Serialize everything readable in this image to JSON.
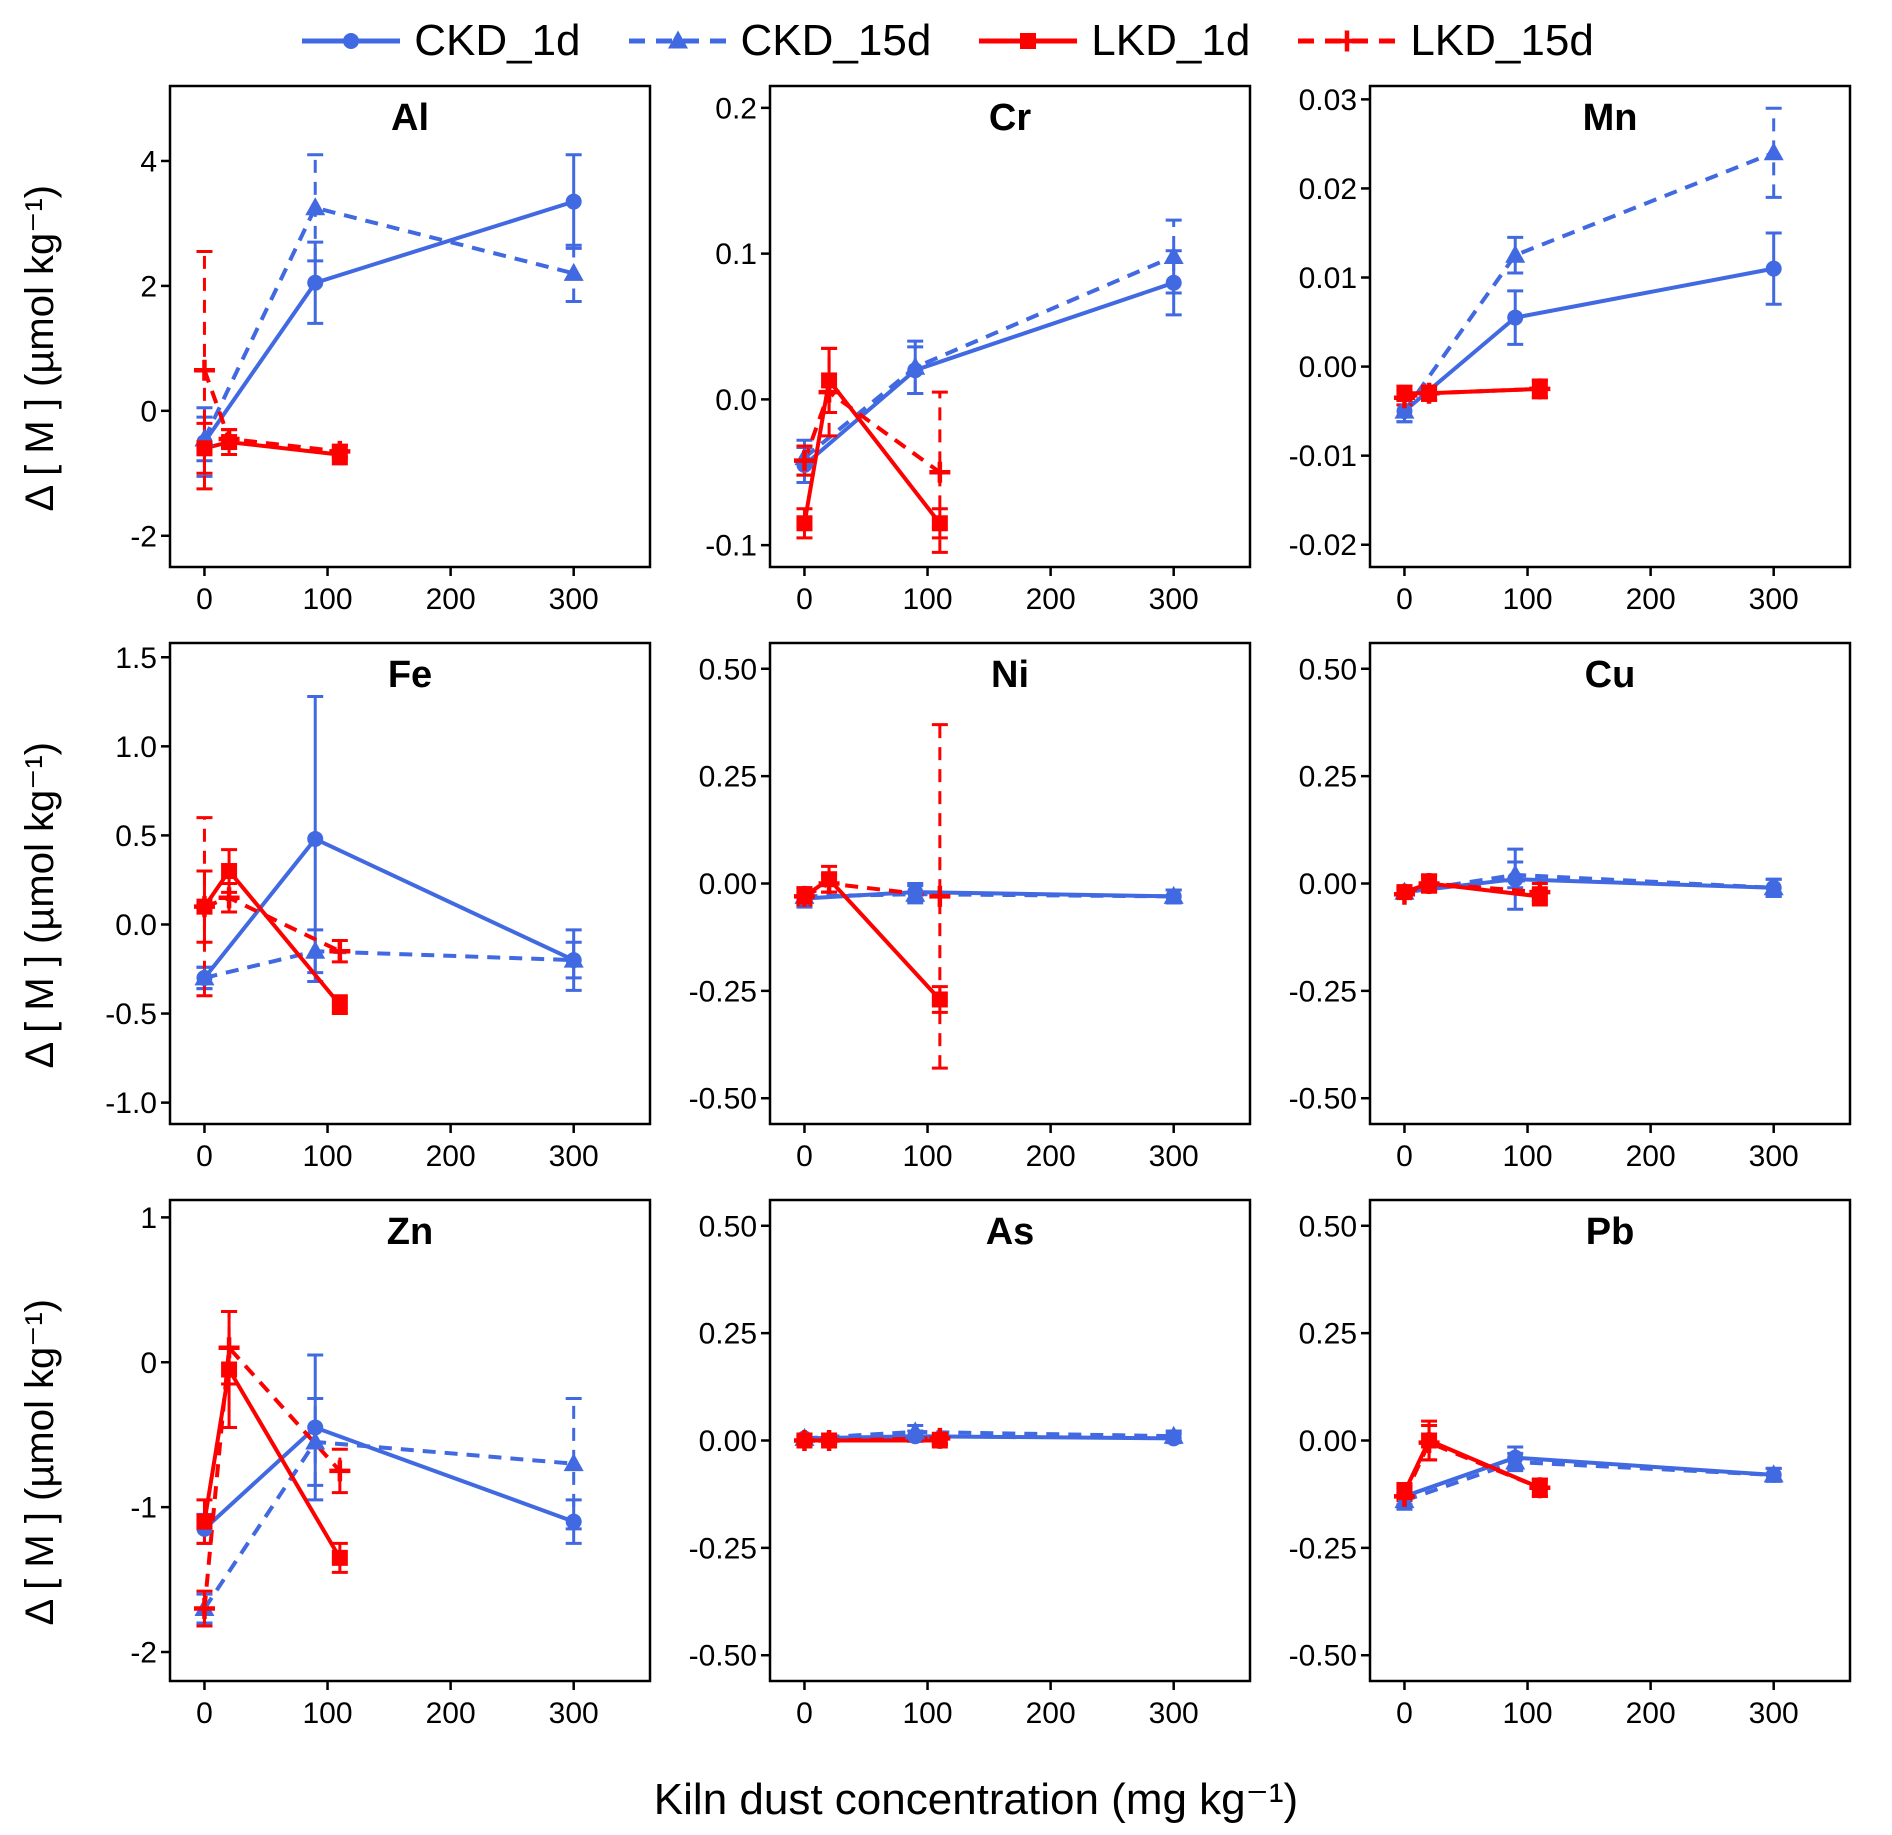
{
  "figure": {
    "x_axis_label": "Kiln dust concentration (mg kg⁻¹)",
    "y_axis_label": "Δ [ M ] (µmol kg⁻¹)"
  },
  "colors": {
    "blue": "#4169E1",
    "red": "#FF0000",
    "axis": "#000000",
    "panel_bg": "#FFFFFF"
  },
  "legend": {
    "items": [
      {
        "name": "CKD_1d",
        "label": "CKD_1d",
        "color": "#4169E1",
        "dashed": false,
        "marker": "circle"
      },
      {
        "name": "CKD_15d",
        "label": "CKD_15d",
        "color": "#4169E1",
        "dashed": true,
        "marker": "triangle"
      },
      {
        "name": "LKD_1d",
        "label": "LKD_1d",
        "color": "#FF0000",
        "dashed": false,
        "marker": "square"
      },
      {
        "name": "LKD_15d",
        "label": "LKD_15d",
        "color": "#FF0000",
        "dashed": true,
        "marker": "plus"
      }
    ]
  },
  "chart_data": [
    {
      "type": "line",
      "title": "Al",
      "xlim": [
        -28,
        362
      ],
      "xticks": [
        0,
        100,
        200,
        300
      ],
      "xtick_labels": [
        "0",
        "100",
        "200",
        "300"
      ],
      "ylim": [
        -2.5,
        5.2
      ],
      "yticks": [
        -2,
        0,
        2,
        4
      ],
      "ytick_labels": [
        "-2",
        "0",
        "2",
        "4"
      ],
      "series": [
        {
          "name": "CKD_1d",
          "x": [
            0,
            90,
            300
          ],
          "y": [
            -0.5,
            2.05,
            3.35
          ],
          "err": [
            0.55,
            0.65,
            0.75
          ]
        },
        {
          "name": "CKD_15d",
          "x": [
            0,
            90,
            300
          ],
          "y": [
            -0.45,
            3.25,
            2.2
          ],
          "err": [
            0.35,
            0.85,
            0.45
          ]
        },
        {
          "name": "LKD_1d",
          "x": [
            0,
            20,
            110
          ],
          "y": [
            -0.6,
            -0.5,
            -0.7
          ],
          "err": [
            0.4,
            0.2,
            0.15
          ]
        },
        {
          "name": "LKD_15d",
          "x": [
            0,
            20,
            110
          ],
          "y": [
            0.65,
            -0.45,
            -0.65
          ],
          "err": [
            1.9,
            0.15,
            0.1
          ]
        }
      ]
    },
    {
      "type": "line",
      "title": "Cr",
      "xlim": [
        -28,
        362
      ],
      "xticks": [
        0,
        100,
        200,
        300
      ],
      "xtick_labels": [
        "0",
        "100",
        "200",
        "300"
      ],
      "ylim": [
        -0.115,
        0.215
      ],
      "yticks": [
        -0.1,
        0.0,
        0.1,
        0.2
      ],
      "ytick_labels": [
        "-0.1",
        "0.0",
        "0.1",
        "0.2"
      ],
      "series": [
        {
          "name": "CKD_1d",
          "x": [
            0,
            90,
            300
          ],
          "y": [
            -0.045,
            0.02,
            0.08
          ],
          "err": [
            0.012,
            0.016,
            0.022
          ]
        },
        {
          "name": "CKD_15d",
          "x": [
            0,
            90,
            300
          ],
          "y": [
            -0.04,
            0.022,
            0.098
          ],
          "err": [
            0.012,
            0.018,
            0.025
          ]
        },
        {
          "name": "LKD_1d",
          "x": [
            0,
            20,
            110
          ],
          "y": [
            -0.085,
            0.013,
            -0.085
          ],
          "err": [
            0.01,
            0.022,
            0.01
          ]
        },
        {
          "name": "LKD_15d",
          "x": [
            0,
            20,
            110
          ],
          "y": [
            -0.042,
            0.005,
            -0.05
          ],
          "err": [
            0.01,
            0.03,
            0.055
          ]
        }
      ]
    },
    {
      "type": "line",
      "title": "Mn",
      "xlim": [
        -28,
        362
      ],
      "xticks": [
        0,
        100,
        200,
        300
      ],
      "xtick_labels": [
        "0",
        "100",
        "200",
        "300"
      ],
      "ylim": [
        -0.0225,
        0.0315
      ],
      "yticks": [
        -0.02,
        -0.01,
        0,
        0.01,
        0.02,
        0.03
      ],
      "ytick_labels": [
        "-0.02",
        "-0.01",
        "0.00",
        "0.01",
        "0.02",
        "0.03"
      ],
      "series": [
        {
          "name": "CKD_1d",
          "x": [
            0,
            90,
            300
          ],
          "y": [
            -0.005,
            0.0055,
            0.011
          ],
          "err": [
            0.0012,
            0.003,
            0.004
          ]
        },
        {
          "name": "CKD_15d",
          "x": [
            0,
            90,
            300
          ],
          "y": [
            -0.005,
            0.0125,
            0.024
          ],
          "err": [
            0.0012,
            0.002,
            0.005
          ]
        },
        {
          "name": "LKD_1d",
          "x": [
            0,
            20,
            110
          ],
          "y": [
            -0.003,
            -0.003,
            -0.0025
          ],
          "err": [
            0.0008,
            0.0008,
            0.001
          ]
        },
        {
          "name": "LKD_15d",
          "x": [
            0,
            20,
            110
          ],
          "y": [
            -0.0035,
            -0.003,
            -0.0025
          ],
          "err": [
            0.0008,
            0.0008,
            0.001
          ]
        }
      ]
    },
    {
      "type": "line",
      "title": "Fe",
      "xlim": [
        -28,
        362
      ],
      "xticks": [
        0,
        100,
        200,
        300
      ],
      "xtick_labels": [
        "0",
        "100",
        "200",
        "300"
      ],
      "ylim": [
        -1.12,
        1.58
      ],
      "yticks": [
        -1.0,
        -0.5,
        0,
        0.5,
        1.0,
        1.5
      ],
      "ytick_labels": [
        "-1.0",
        "-0.5",
        "0.0",
        "0.5",
        "1.0",
        "1.5"
      ],
      "series": [
        {
          "name": "CKD_1d",
          "x": [
            0,
            90,
            300
          ],
          "y": [
            -0.3,
            0.48,
            -0.2
          ],
          "err": [
            0.06,
            0.8,
            0.17
          ]
        },
        {
          "name": "CKD_15d",
          "x": [
            0,
            90,
            300
          ],
          "y": [
            -0.3,
            -0.15,
            -0.2
          ],
          "err": [
            0.06,
            0.12,
            0.1
          ]
        },
        {
          "name": "LKD_1d",
          "x": [
            0,
            20,
            110
          ],
          "y": [
            0.1,
            0.3,
            -0.45
          ],
          "err": [
            0.2,
            0.12,
            0.05
          ]
        },
        {
          "name": "LKD_15d",
          "x": [
            0,
            20,
            110
          ],
          "y": [
            0.1,
            0.15,
            -0.15
          ],
          "err": [
            0.5,
            0.08,
            0.06
          ]
        }
      ]
    },
    {
      "type": "line",
      "title": "Ni",
      "xlim": [
        -28,
        362
      ],
      "xticks": [
        0,
        100,
        200,
        300
      ],
      "xtick_labels": [
        "0",
        "100",
        "200",
        "300"
      ],
      "ylim": [
        -0.56,
        0.56
      ],
      "yticks": [
        -0.5,
        -0.25,
        0,
        0.25,
        0.5
      ],
      "ytick_labels": [
        "-0.50",
        "-0.25",
        "0.00",
        "0.25",
        "0.50"
      ],
      "series": [
        {
          "name": "CKD_1d",
          "x": [
            0,
            90,
            300
          ],
          "y": [
            -0.035,
            -0.02,
            -0.03
          ],
          "err": [
            0.02,
            0.02,
            0.015
          ]
        },
        {
          "name": "CKD_15d",
          "x": [
            0,
            90,
            300
          ],
          "y": [
            -0.03,
            -0.025,
            -0.03
          ],
          "err": [
            0.02,
            0.02,
            0.015
          ]
        },
        {
          "name": "LKD_1d",
          "x": [
            0,
            20,
            110
          ],
          "y": [
            -0.03,
            0.01,
            -0.27
          ],
          "err": [
            0.02,
            0.03,
            0.03
          ]
        },
        {
          "name": "LKD_15d",
          "x": [
            0,
            20,
            110
          ],
          "y": [
            -0.03,
            0.0,
            -0.03
          ],
          "err": [
            0.02,
            0.02,
            0.4
          ]
        }
      ]
    },
    {
      "type": "line",
      "title": "Cu",
      "xlim": [
        -28,
        362
      ],
      "xticks": [
        0,
        100,
        200,
        300
      ],
      "xtick_labels": [
        "0",
        "100",
        "200",
        "300"
      ],
      "ylim": [
        -0.56,
        0.56
      ],
      "yticks": [
        -0.5,
        -0.25,
        0,
        0.25,
        0.5
      ],
      "ytick_labels": [
        "-0.50",
        "-0.25",
        "0.00",
        "0.25",
        "0.50"
      ],
      "series": [
        {
          "name": "CKD_1d",
          "x": [
            0,
            90,
            300
          ],
          "y": [
            -0.02,
            0.01,
            -0.01
          ],
          "err": [
            0.01,
            0.07,
            0.02
          ]
        },
        {
          "name": "CKD_15d",
          "x": [
            0,
            90,
            300
          ],
          "y": [
            -0.02,
            0.02,
            -0.01
          ],
          "err": [
            0.01,
            0.03,
            0.02
          ]
        },
        {
          "name": "LKD_1d",
          "x": [
            0,
            20,
            110
          ],
          "y": [
            -0.02,
            0.0,
            -0.03
          ],
          "err": [
            0.01,
            0.02,
            0.02
          ]
        },
        {
          "name": "LKD_15d",
          "x": [
            0,
            20,
            110
          ],
          "y": [
            -0.025,
            0.0,
            -0.02
          ],
          "err": [
            0.01,
            0.02,
            0.02
          ]
        }
      ]
    },
    {
      "type": "line",
      "title": "Zn",
      "xlim": [
        -28,
        362
      ],
      "xticks": [
        0,
        100,
        200,
        300
      ],
      "xtick_labels": [
        "0",
        "100",
        "200",
        "300"
      ],
      "ylim": [
        -2.2,
        1.12
      ],
      "yticks": [
        -2,
        -1,
        0,
        1
      ],
      "ytick_labels": [
        "-2",
        "-1",
        "0",
        "1"
      ],
      "series": [
        {
          "name": "CKD_1d",
          "x": [
            0,
            90,
            300
          ],
          "y": [
            -1.15,
            -0.45,
            -1.1
          ],
          "err": [
            0.1,
            0.5,
            0.15
          ]
        },
        {
          "name": "CKD_15d",
          "x": [
            0,
            90,
            300
          ],
          "y": [
            -1.7,
            -0.55,
            -0.7
          ],
          "err": [
            0.1,
            0.3,
            0.45
          ]
        },
        {
          "name": "LKD_1d",
          "x": [
            0,
            20,
            110
          ],
          "y": [
            -1.1,
            -0.05,
            -1.35
          ],
          "err": [
            0.15,
            0.4,
            0.1
          ]
        },
        {
          "name": "LKD_15d",
          "x": [
            0,
            20,
            110
          ],
          "y": [
            -1.7,
            0.1,
            -0.75
          ],
          "err": [
            0.12,
            0.25,
            0.15
          ]
        }
      ]
    },
    {
      "type": "line",
      "title": "As",
      "xlim": [
        -28,
        362
      ],
      "xticks": [
        0,
        100,
        200,
        300
      ],
      "xtick_labels": [
        "0",
        "100",
        "200",
        "300"
      ],
      "ylim": [
        -0.56,
        0.56
      ],
      "yticks": [
        -0.5,
        -0.25,
        0,
        0.25,
        0.5
      ],
      "ytick_labels": [
        "-0.50",
        "-0.25",
        "0.00",
        "0.25",
        "0.50"
      ],
      "series": [
        {
          "name": "CKD_1d",
          "x": [
            0,
            90,
            300
          ],
          "y": [
            0.005,
            0.01,
            0.005
          ],
          "err": [
            0.008,
            0.012,
            0.01
          ]
        },
        {
          "name": "CKD_15d",
          "x": [
            0,
            90,
            300
          ],
          "y": [
            0.005,
            0.02,
            0.01
          ],
          "err": [
            0.008,
            0.015,
            0.012
          ]
        },
        {
          "name": "LKD_1d",
          "x": [
            0,
            20,
            110
          ],
          "y": [
            0.0,
            0.0,
            0.0
          ],
          "err": [
            0.006,
            0.006,
            0.01
          ]
        },
        {
          "name": "LKD_15d",
          "x": [
            0,
            20,
            110
          ],
          "y": [
            0.0,
            0.0,
            0.005
          ],
          "err": [
            0.006,
            0.006,
            0.012
          ]
        }
      ]
    },
    {
      "type": "line",
      "title": "Pb",
      "xlim": [
        -28,
        362
      ],
      "xticks": [
        0,
        100,
        200,
        300
      ],
      "xtick_labels": [
        "0",
        "100",
        "200",
        "300"
      ],
      "ylim": [
        -0.56,
        0.56
      ],
      "yticks": [
        -0.5,
        -0.25,
        0,
        0.25,
        0.5
      ],
      "ytick_labels": [
        "-0.50",
        "-0.25",
        "0.00",
        "0.25",
        "0.50"
      ],
      "series": [
        {
          "name": "CKD_1d",
          "x": [
            0,
            90,
            300
          ],
          "y": [
            -0.13,
            -0.04,
            -0.08
          ],
          "err": [
            0.02,
            0.025,
            0.015
          ]
        },
        {
          "name": "CKD_15d",
          "x": [
            0,
            90,
            300
          ],
          "y": [
            -0.14,
            -0.05,
            -0.08
          ],
          "err": [
            0.02,
            0.02,
            0.015
          ]
        },
        {
          "name": "LKD_1d",
          "x": [
            0,
            20,
            110
          ],
          "y": [
            -0.12,
            0.0,
            -0.11
          ],
          "err": [
            0.02,
            0.045,
            0.02
          ]
        },
        {
          "name": "LKD_15d",
          "x": [
            0,
            20,
            110
          ],
          "y": [
            -0.13,
            -0.005,
            -0.11
          ],
          "err": [
            0.02,
            0.04,
            0.02
          ]
        }
      ]
    }
  ]
}
